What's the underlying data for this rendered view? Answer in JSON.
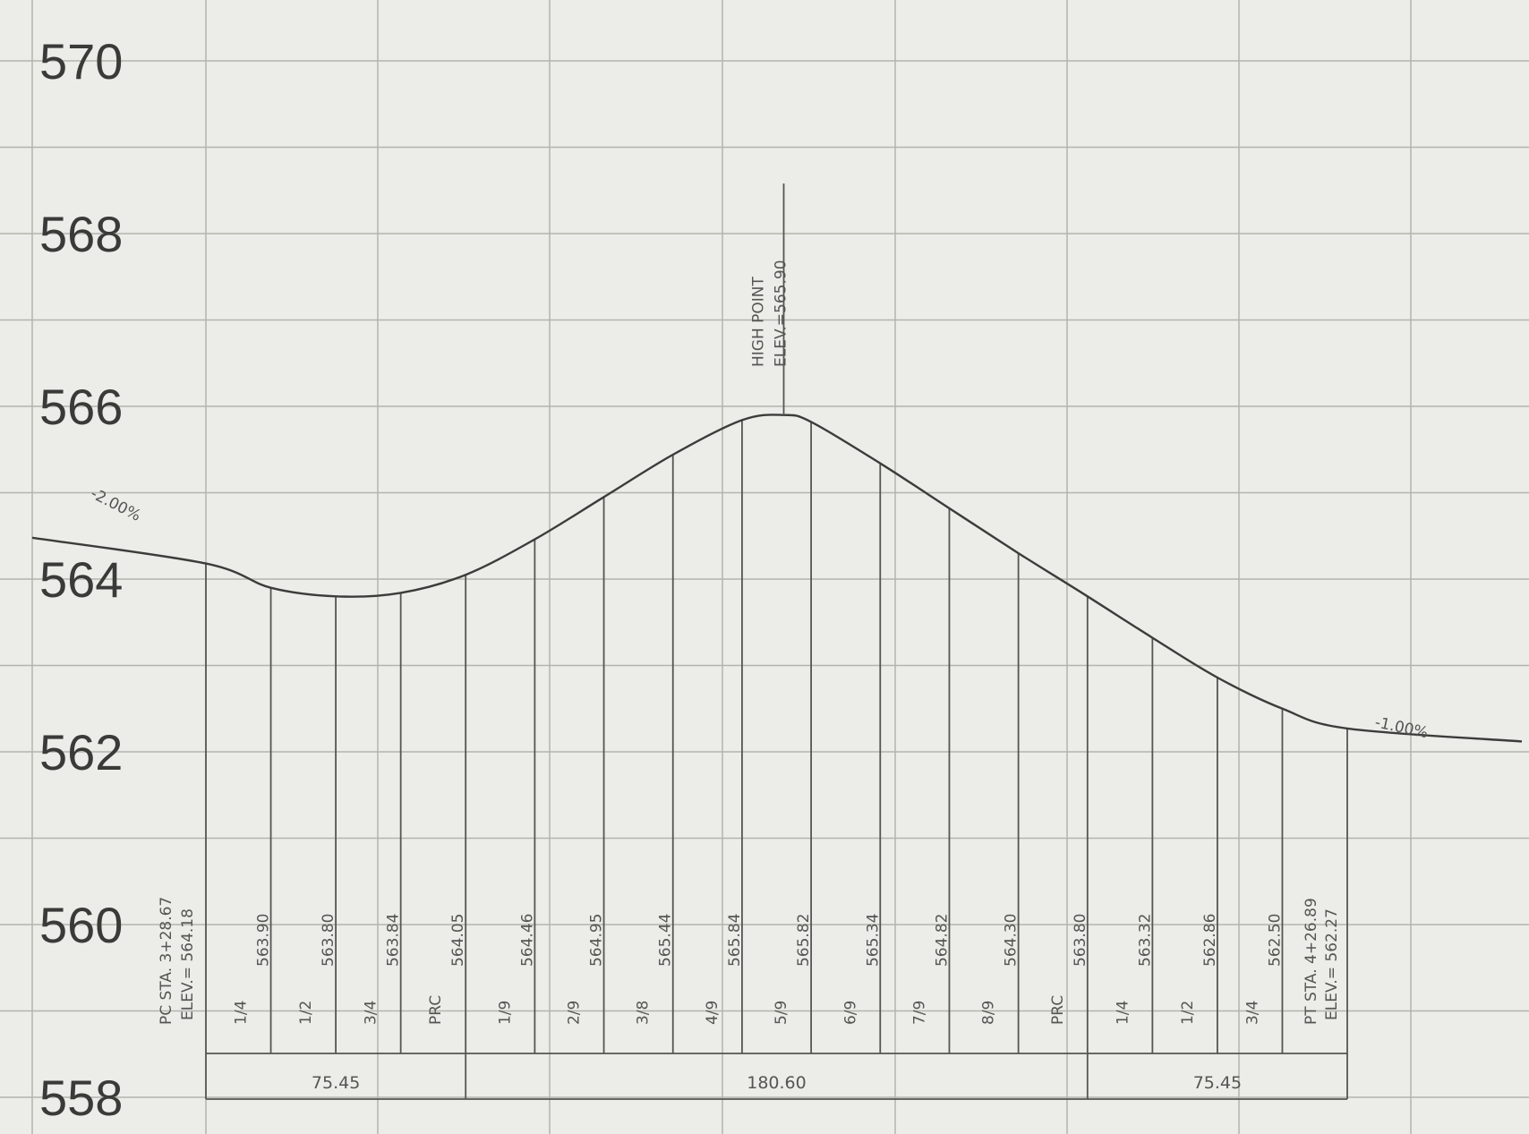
{
  "chart_data": {
    "type": "line",
    "title": "",
    "xlabel": "",
    "ylabel": "",
    "ylim": [
      558,
      570
    ],
    "y_ticks": [
      "558",
      "560",
      "562",
      "564",
      "566",
      "568",
      "570"
    ],
    "grid": true,
    "grade_in": {
      "label": "-2.00%",
      "slope": -0.02
    },
    "grade_out": {
      "label": "-1.00%",
      "slope": -0.01
    },
    "pc": {
      "label": "PC STA. 3+28.67",
      "elev_label": "ELEV.= 564.18",
      "station": 328.67,
      "elevation": 564.18
    },
    "pt": {
      "label": "PT STA. 4+26.89",
      "elev_label": "ELEV.= 562.27",
      "station": 426.89,
      "elevation": 562.27
    },
    "high_point": {
      "label": "HIGH POINT",
      "elev_label": "ELEV.=565.90",
      "elevation": 565.9
    },
    "stations": [
      {
        "fraction": "1/4",
        "elevation": "563.90"
      },
      {
        "fraction": "1/2",
        "elevation": "563.80"
      },
      {
        "fraction": "3/4",
        "elevation": "563.84"
      },
      {
        "fraction": "PRC",
        "elevation": "564.05"
      },
      {
        "fraction": "1/9",
        "elevation": "564.46"
      },
      {
        "fraction": "2/9",
        "elevation": "564.95"
      },
      {
        "fraction": "3/8",
        "elevation": "565.44"
      },
      {
        "fraction": "4/9",
        "elevation": "565.84"
      },
      {
        "fraction": "5/9",
        "elevation": "565.82"
      },
      {
        "fraction": "6/9",
        "elevation": "565.34"
      },
      {
        "fraction": "7/9",
        "elevation": "564.82"
      },
      {
        "fraction": "8/9",
        "elevation": "564.30"
      },
      {
        "fraction": "PRC",
        "elevation": "563.80"
      },
      {
        "fraction": "1/4",
        "elevation": "563.32"
      },
      {
        "fraction": "1/2",
        "elevation": "562.86"
      },
      {
        "fraction": "3/4",
        "elevation": "562.50"
      }
    ],
    "segments": [
      {
        "label": "75.45",
        "length": 75.45
      },
      {
        "label": "180.60",
        "length": 180.6
      },
      {
        "label": "75.45",
        "length": 75.45
      }
    ],
    "colors": {
      "paper": "#ecece8",
      "grid": "#b4b4ae",
      "ink": "#3c3c3a"
    }
  }
}
